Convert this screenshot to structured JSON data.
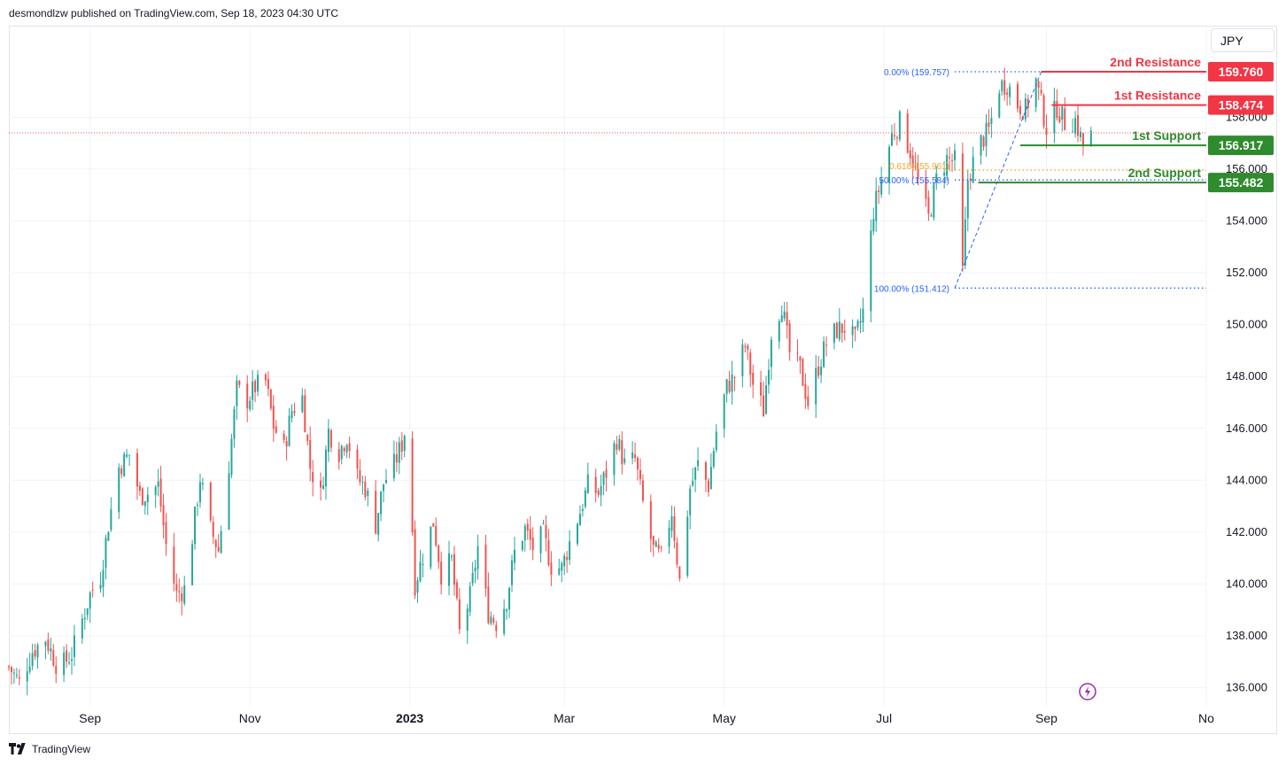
{
  "header": {
    "published": "desmondlzw published on TradingView.com, Sep 18, 2023 04:30 UTC"
  },
  "currency": "JPY",
  "footer": {
    "brand": "TradingView"
  },
  "colors": {
    "up": "#26a69a",
    "down": "#ef5350",
    "resistance": "#f23645",
    "support": "#2e8b2e",
    "fib": "#2962ff",
    "fib618": "#f5a623",
    "text": "#131722",
    "grid": "#f0f3fa"
  },
  "chart_data": {
    "type": "candlestick",
    "y_axis_ticks": [
      "136.000",
      "138.000",
      "140.000",
      "142.000",
      "144.000",
      "146.000",
      "148.000",
      "150.000",
      "152.000",
      "154.000",
      "156.000",
      "158.000"
    ],
    "y_range": [
      135.3,
      161.5
    ],
    "x_axis_ticks": [
      {
        "label": "Sep",
        "date": "2022-09-01",
        "bold": false
      },
      {
        "label": "Nov",
        "date": "2022-11-01",
        "bold": false
      },
      {
        "label": "2023",
        "date": "2023-01-01",
        "bold": true
      },
      {
        "label": "Mar",
        "date": "2023-03-01",
        "bold": false
      },
      {
        "label": "May",
        "date": "2023-05-01",
        "bold": false
      },
      {
        "label": "Jul",
        "date": "2023-07-01",
        "bold": false
      },
      {
        "label": "Sep",
        "date": "2023-09-01",
        "bold": false
      },
      {
        "label": "No",
        "date": "2023-11-01",
        "bold": false
      }
    ],
    "x_start_date": "2022-08-01",
    "x_end_date": "2023-11-01",
    "closes": [
      {
        "date": "2022-08-01",
        "close": 136.8
      },
      {
        "date": "2022-08-05",
        "close": 136.2
      },
      {
        "date": "2022-08-10",
        "close": 137.4
      },
      {
        "date": "2022-08-15",
        "close": 137.9
      },
      {
        "date": "2022-08-20",
        "close": 136.7
      },
      {
        "date": "2022-08-25",
        "close": 137.3
      },
      {
        "date": "2022-09-01",
        "close": 139.6
      },
      {
        "date": "2022-09-05",
        "close": 140.3
      },
      {
        "date": "2022-09-08",
        "close": 142.3
      },
      {
        "date": "2022-09-12",
        "close": 144.5
      },
      {
        "date": "2022-09-16",
        "close": 145.0
      },
      {
        "date": "2022-09-20",
        "close": 143.4
      },
      {
        "date": "2022-09-23",
        "close": 143.5
      },
      {
        "date": "2022-09-27",
        "close": 143.8
      },
      {
        "date": "2022-09-30",
        "close": 141.5
      },
      {
        "date": "2022-10-04",
        "close": 139.6
      },
      {
        "date": "2022-10-07",
        "close": 139.8
      },
      {
        "date": "2022-10-10",
        "close": 141.8
      },
      {
        "date": "2022-10-13",
        "close": 144.1
      },
      {
        "date": "2022-10-17",
        "close": 142.1
      },
      {
        "date": "2022-10-20",
        "close": 141.3
      },
      {
        "date": "2022-10-24",
        "close": 144.6
      },
      {
        "date": "2022-10-27",
        "close": 147.5
      },
      {
        "date": "2022-10-31",
        "close": 147.1
      },
      {
        "date": "2022-11-03",
        "close": 147.6
      },
      {
        "date": "2022-11-07",
        "close": 147.8
      },
      {
        "date": "2022-11-10",
        "close": 146.1
      },
      {
        "date": "2022-11-14",
        "close": 145.2
      },
      {
        "date": "2022-11-17",
        "close": 146.7
      },
      {
        "date": "2022-11-21",
        "close": 147.2
      },
      {
        "date": "2022-11-24",
        "close": 144.5
      },
      {
        "date": "2022-11-28",
        "close": 143.4
      },
      {
        "date": "2022-12-01",
        "close": 145.9
      },
      {
        "date": "2022-12-05",
        "close": 145.1
      },
      {
        "date": "2022-12-08",
        "close": 145.7
      },
      {
        "date": "2022-12-12",
        "close": 144.1
      },
      {
        "date": "2022-12-15",
        "close": 143.7
      },
      {
        "date": "2022-12-19",
        "close": 142.3
      },
      {
        "date": "2022-12-22",
        "close": 143.9
      },
      {
        "date": "2022-12-26",
        "close": 144.6
      },
      {
        "date": "2022-12-29",
        "close": 145.4
      },
      {
        "date": "2022-12-31",
        "close": 146.3
      },
      {
        "date": "2023-01-03",
        "close": 140.0
      },
      {
        "date": "2023-01-06",
        "close": 141.1
      },
      {
        "date": "2023-01-10",
        "close": 142.4
      },
      {
        "date": "2023-01-13",
        "close": 140.4
      },
      {
        "date": "2023-01-17",
        "close": 140.9
      },
      {
        "date": "2023-01-20",
        "close": 138.1
      },
      {
        "date": "2023-01-24",
        "close": 139.5
      },
      {
        "date": "2023-01-27",
        "close": 141.4
      },
      {
        "date": "2023-01-31",
        "close": 138.9
      },
      {
        "date": "2023-02-03",
        "close": 138.5
      },
      {
        "date": "2023-02-07",
        "close": 139.4
      },
      {
        "date": "2023-02-10",
        "close": 141.2
      },
      {
        "date": "2023-02-14",
        "close": 142.1
      },
      {
        "date": "2023-02-17",
        "close": 141.4
      },
      {
        "date": "2023-02-21",
        "close": 141.9
      },
      {
        "date": "2023-02-24",
        "close": 140.7
      },
      {
        "date": "2023-02-28",
        "close": 140.6
      },
      {
        "date": "2023-03-03",
        "close": 141.6
      },
      {
        "date": "2023-03-07",
        "close": 142.8
      },
      {
        "date": "2023-03-10",
        "close": 143.8
      },
      {
        "date": "2023-03-14",
        "close": 143.5
      },
      {
        "date": "2023-03-17",
        "close": 144.3
      },
      {
        "date": "2023-03-21",
        "close": 145.6
      },
      {
        "date": "2023-03-24",
        "close": 144.6
      },
      {
        "date": "2023-03-28",
        "close": 144.8
      },
      {
        "date": "2023-03-31",
        "close": 143.1
      },
      {
        "date": "2023-04-04",
        "close": 141.3
      },
      {
        "date": "2023-04-07",
        "close": 141.0
      },
      {
        "date": "2023-04-11",
        "close": 142.8
      },
      {
        "date": "2023-04-14",
        "close": 140.1
      },
      {
        "date": "2023-04-18",
        "close": 143.7
      },
      {
        "date": "2023-04-21",
        "close": 144.6
      },
      {
        "date": "2023-04-25",
        "close": 143.8
      },
      {
        "date": "2023-04-28",
        "close": 145.9
      },
      {
        "date": "2023-05-02",
        "close": 147.6
      },
      {
        "date": "2023-05-05",
        "close": 148.0
      },
      {
        "date": "2023-05-09",
        "close": 149.2
      },
      {
        "date": "2023-05-12",
        "close": 147.7
      },
      {
        "date": "2023-05-16",
        "close": 146.7
      },
      {
        "date": "2023-05-19",
        "close": 149.7
      },
      {
        "date": "2023-05-23",
        "close": 150.8
      },
      {
        "date": "2023-05-26",
        "close": 148.9
      },
      {
        "date": "2023-05-30",
        "close": 148.3
      },
      {
        "date": "2023-06-02",
        "close": 147.0
      },
      {
        "date": "2023-06-06",
        "close": 148.4
      },
      {
        "date": "2023-06-09",
        "close": 149.3
      },
      {
        "date": "2023-06-13",
        "close": 149.8
      },
      {
        "date": "2023-06-16",
        "close": 149.9
      },
      {
        "date": "2023-06-20",
        "close": 149.4
      },
      {
        "date": "2023-06-23",
        "close": 150.5
      },
      {
        "date": "2023-06-27",
        "close": 154.4
      },
      {
        "date": "2023-06-30",
        "close": 155.6
      },
      {
        "date": "2023-07-04",
        "close": 157.3
      },
      {
        "date": "2023-07-07",
        "close": 157.8
      },
      {
        "date": "2023-07-11",
        "close": 156.7
      },
      {
        "date": "2023-07-14",
        "close": 155.5
      },
      {
        "date": "2023-07-18",
        "close": 154.1
      },
      {
        "date": "2023-07-21",
        "close": 155.6
      },
      {
        "date": "2023-07-25",
        "close": 156.4
      },
      {
        "date": "2023-07-28",
        "close": 156.3
      },
      {
        "date": "2023-07-31",
        "close": 152.0
      },
      {
        "date": "2023-08-02",
        "close": 155.6
      },
      {
        "date": "2023-08-06",
        "close": 156.9
      },
      {
        "date": "2023-08-10",
        "close": 157.5
      },
      {
        "date": "2023-08-14",
        "close": 159.2
      },
      {
        "date": "2023-08-17",
        "close": 159.3
      },
      {
        "date": "2023-08-21",
        "close": 158.5
      },
      {
        "date": "2023-08-24",
        "close": 158.3
      },
      {
        "date": "2023-08-28",
        "close": 159.4
      },
      {
        "date": "2023-08-30",
        "close": 158.5
      },
      {
        "date": "2023-09-01",
        "close": 157.6
      },
      {
        "date": "2023-09-05",
        "close": 158.4
      },
      {
        "date": "2023-09-08",
        "close": 157.8
      },
      {
        "date": "2023-09-12",
        "close": 157.9
      },
      {
        "date": "2023-09-15",
        "close": 156.9
      },
      {
        "date": "2023-09-18",
        "close": 157.3
      }
    ],
    "fib": {
      "levels": [
        {
          "label": "0.00% (159.757)",
          "value": 159.757
        },
        {
          "label": "0.618(155.961)",
          "value": 155.961
        },
        {
          "label": "50.00% (155.584)",
          "value": 155.584
        },
        {
          "label": "100.00% (151.412)",
          "value": 151.412
        }
      ],
      "start_date": "2023-07-28",
      "end_date": "2023-08-30"
    },
    "levels": [
      {
        "name": "2nd Resistance",
        "value": 159.76,
        "label": "159.760",
        "kind": "resistance",
        "start_date": "2023-08-30"
      },
      {
        "name": "1st Resistance",
        "value": 158.474,
        "label": "158.474",
        "kind": "resistance",
        "start_date": "2023-09-03"
      },
      {
        "name": "1st Support",
        "value": 156.917,
        "label": "156.917",
        "kind": "support",
        "start_date": "2023-08-22"
      },
      {
        "name": "2nd Support",
        "value": 155.482,
        "label": "155.482",
        "kind": "support",
        "start_date": "2023-08-06"
      }
    ],
    "last_price": 157.4
  }
}
